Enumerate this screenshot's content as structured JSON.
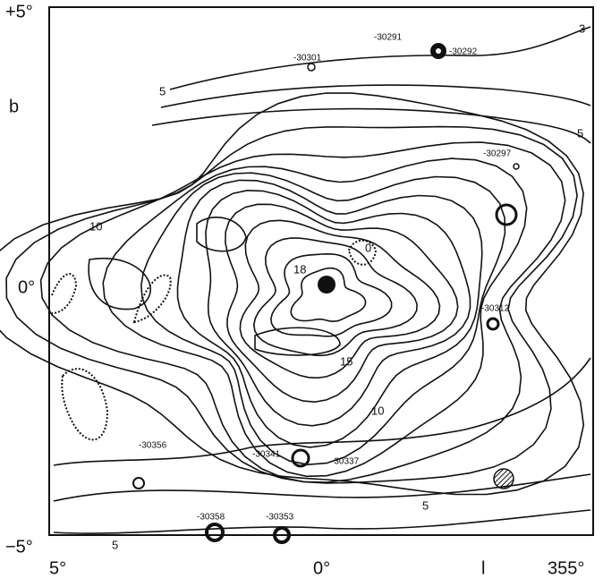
{
  "axes": {
    "y_top": "+5°",
    "y_label": "b",
    "y_mid": "0°",
    "y_bottom": "−5°",
    "x_left": "5°",
    "x_mid": "0°",
    "x_label": "l",
    "x_right": "355°"
  },
  "sources": [
    "-30291",
    "-30292",
    "-30301",
    "-30297",
    "-30312",
    "-30341",
    "-30337",
    "-30356",
    "-30358",
    "-30353"
  ],
  "contour_labels": [
    "3",
    "5",
    "5",
    "10",
    "18",
    "0",
    "15",
    "10",
    "5",
    "5"
  ]
}
